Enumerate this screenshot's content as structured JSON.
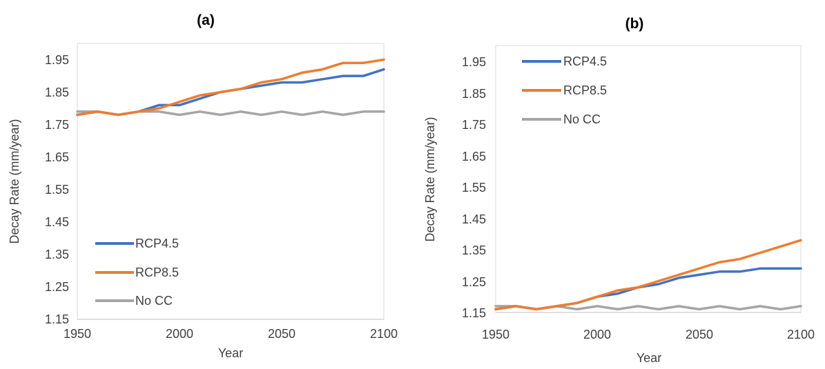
{
  "chart_data": [
    {
      "type": "line",
      "title": "(a)",
      "xlabel": "Year",
      "ylabel": "Decay Rate (mm/year)",
      "xlim": [
        1950,
        2100
      ],
      "ylim": [
        1.15,
        2.0
      ],
      "x_ticks": [
        "1950",
        "2000",
        "2050",
        "2100"
      ],
      "y_ticks": [
        "1.15",
        "1.25",
        "1.35",
        "1.45",
        "1.55",
        "1.65",
        "1.75",
        "1.85",
        "1.95"
      ],
      "grid": false,
      "legend_position": "bottom-left",
      "x": [
        1950,
        1960,
        1970,
        1980,
        1990,
        2000,
        2010,
        2020,
        2030,
        2040,
        2050,
        2060,
        2070,
        2080,
        2090,
        2100
      ],
      "series": [
        {
          "name": "RCP4.5",
          "color": "#4472c4",
          "values": [
            1.78,
            1.79,
            1.78,
            1.79,
            1.81,
            1.81,
            1.83,
            1.85,
            1.86,
            1.87,
            1.88,
            1.88,
            1.89,
            1.9,
            1.9,
            1.92
          ]
        },
        {
          "name": "RCP8.5",
          "color": "#ed7d31",
          "values": [
            1.78,
            1.79,
            1.78,
            1.79,
            1.8,
            1.82,
            1.84,
            1.85,
            1.86,
            1.88,
            1.89,
            1.91,
            1.92,
            1.94,
            1.94,
            1.95
          ]
        },
        {
          "name": "No CC",
          "color": "#a5a5a5",
          "values": [
            1.79,
            1.79,
            1.78,
            1.79,
            1.79,
            1.78,
            1.79,
            1.78,
            1.79,
            1.78,
            1.79,
            1.78,
            1.79,
            1.78,
            1.79,
            1.79
          ]
        }
      ]
    },
    {
      "type": "line",
      "title": "(b)",
      "xlabel": "Year",
      "ylabel": "Decay Rate (mm/year)",
      "xlim": [
        1950,
        2100
      ],
      "ylim": [
        1.15,
        2.0
      ],
      "x_ticks": [
        "1950",
        "2000",
        "2050",
        "2100"
      ],
      "y_ticks": [
        "1.15",
        "1.25",
        "1.35",
        "1.45",
        "1.55",
        "1.65",
        "1.75",
        "1.85",
        "1.95"
      ],
      "grid": false,
      "legend_position": "top-left",
      "x": [
        1950,
        1960,
        1970,
        1980,
        1990,
        2000,
        2010,
        2020,
        2030,
        2040,
        2050,
        2060,
        2070,
        2080,
        2090,
        2100
      ],
      "series": [
        {
          "name": "RCP4.5",
          "color": "#4472c4",
          "values": [
            1.16,
            1.17,
            1.16,
            1.17,
            1.18,
            1.2,
            1.21,
            1.23,
            1.24,
            1.26,
            1.27,
            1.28,
            1.28,
            1.29,
            1.29,
            1.29
          ]
        },
        {
          "name": "RCP8.5",
          "color": "#ed7d31",
          "values": [
            1.16,
            1.17,
            1.16,
            1.17,
            1.18,
            1.2,
            1.22,
            1.23,
            1.25,
            1.27,
            1.29,
            1.31,
            1.32,
            1.34,
            1.36,
            1.38
          ]
        },
        {
          "name": "No CC",
          "color": "#a5a5a5",
          "values": [
            1.17,
            1.17,
            1.16,
            1.17,
            1.16,
            1.17,
            1.16,
            1.17,
            1.16,
            1.17,
            1.16,
            1.17,
            1.16,
            1.17,
            1.16,
            1.17
          ]
        }
      ]
    }
  ]
}
